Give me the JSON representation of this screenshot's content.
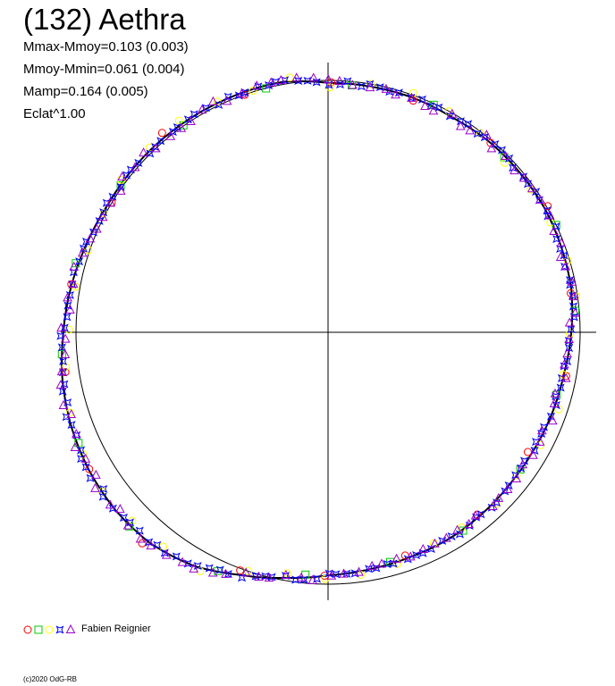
{
  "header": {
    "title": "(132) Aethra",
    "stats": [
      "Mmax-Mmoy=0.103 (0.003)",
      "Mmoy-Mmin=0.061 (0.004)",
      "Mamp=0.164 (0.005)",
      "Eclat^1.00"
    ]
  },
  "legend": {
    "label": "Fabien Reignier",
    "symbols": [
      {
        "name": "red-circle-symbol",
        "shape": "circle",
        "color": "#ff0000"
      },
      {
        "name": "green-square-symbol",
        "shape": "square",
        "color": "#00cc00"
      },
      {
        "name": "yellow-circle-symbol",
        "shape": "circle",
        "color": "#ffff00"
      },
      {
        "name": "blue-star-symbol",
        "shape": "star",
        "color": "#0000ff"
      },
      {
        "name": "purple-triangle-symbol",
        "shape": "triangle",
        "color": "#9900cc"
      }
    ]
  },
  "footer": {
    "copyright": "(c)2020 OdG-RB"
  },
  "chart_data": {
    "type": "polar",
    "axes": "crosshair",
    "reference_circle_radius": 1.0,
    "fit_curve": {
      "samples": 36,
      "deviation": [
        -0.01,
        -0.01,
        -0.01,
        -0.015,
        -0.01,
        -0.01,
        -0.01,
        -0.015,
        -0.02,
        -0.035,
        -0.05,
        -0.055,
        -0.06,
        -0.06,
        -0.055,
        -0.05,
        -0.05,
        -0.045,
        -0.035,
        -0.01,
        0.025,
        0.07,
        0.095,
        0.1,
        0.095,
        0.085,
        0.07,
        0.05,
        0.035,
        0.02,
        0.01,
        0.01,
        0.01,
        0.01,
        0.01,
        0.01
      ],
      "color": "#000000"
    },
    "series": [
      {
        "name": "red-circle",
        "color": "#ff0000",
        "shape": "circle",
        "count": 18,
        "spread": 0.02,
        "gaps": []
      },
      {
        "name": "green-square",
        "color": "#00cc00",
        "shape": "square",
        "count": 18,
        "spread": 0.015,
        "gaps": []
      },
      {
        "name": "yellow-circle",
        "color": "#ffff00",
        "shape": "circle",
        "count": 40,
        "spread": 0.02,
        "gaps": []
      },
      {
        "name": "blue-star",
        "color": "#0000ff",
        "shape": "star",
        "count": 150,
        "spread": 0.01,
        "gaps": []
      },
      {
        "name": "purple-triangle",
        "color": "#9900cc",
        "shape": "triangle",
        "count": 110,
        "spread": 0.015,
        "gaps": []
      }
    ]
  }
}
